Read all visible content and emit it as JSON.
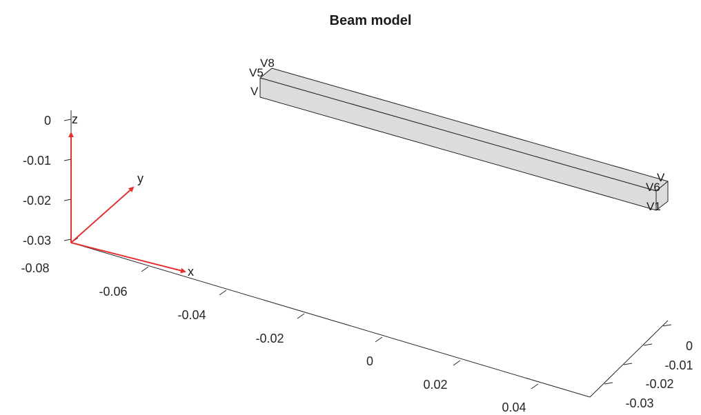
{
  "title": "Beam model",
  "axes": {
    "x_ticks": [
      "-0.08",
      "-0.06",
      "-0.04",
      "-0.02",
      "0",
      "0.02",
      "0.04"
    ],
    "y_ticks": [
      "0",
      "-0.01",
      "-0.02",
      "-0.03"
    ],
    "z_ticks": [
      "0",
      "-0.01",
      "-0.02",
      "-0.03"
    ]
  },
  "vertex_labels": {
    "far_top_back": "V8",
    "far_top_front": "V5",
    "far_bottom": "V",
    "near_top_back": "V",
    "near_top_front": "V6",
    "near_bottom": "V1"
  },
  "triad": {
    "x": "x",
    "y": "y",
    "z": "z"
  },
  "colors": {
    "beam_face": "#dcdcdc",
    "beam_edge": "#202020",
    "triad": "#e53030"
  }
}
